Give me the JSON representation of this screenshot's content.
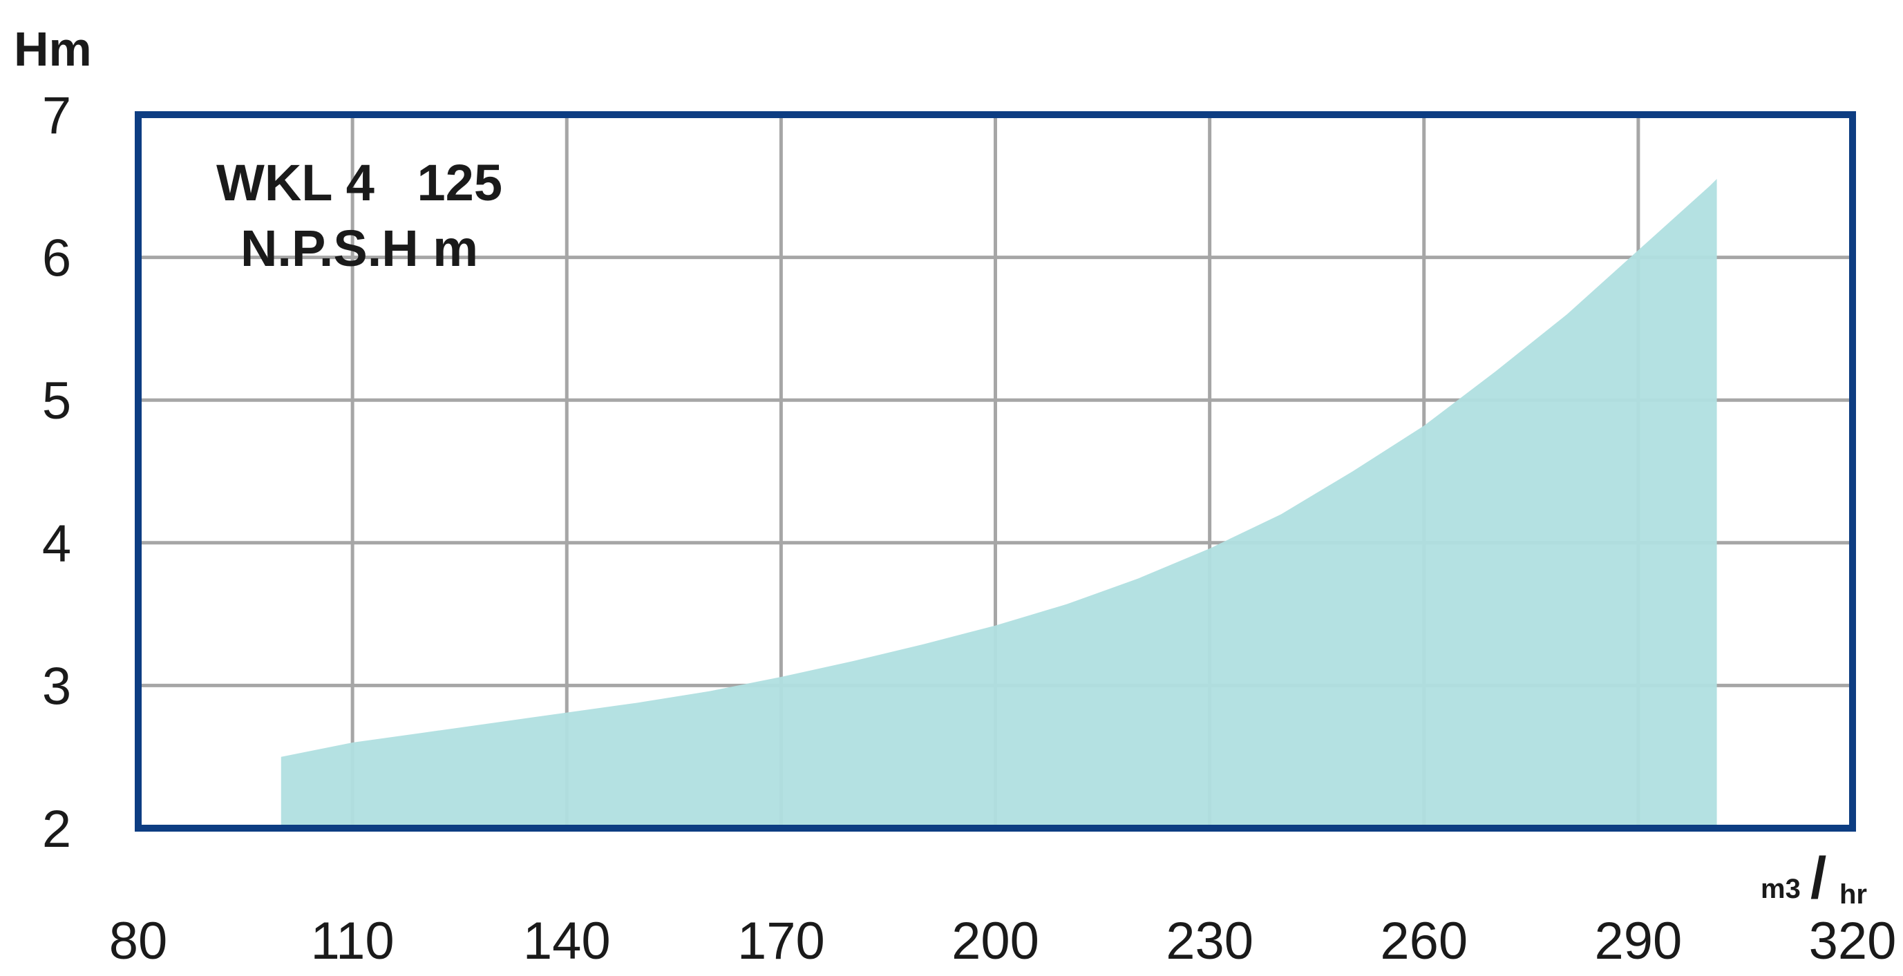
{
  "chart_data": {
    "type": "area",
    "title": "WKL 4   125",
    "subtitle": "N.P.S.H m",
    "ylabel": "Hm",
    "xlabel_num": "m3",
    "xlabel_den": "hr",
    "xlim": [
      80,
      320
    ],
    "ylim": [
      2,
      7
    ],
    "xticks": [
      "80",
      "110",
      "140",
      "170",
      "200",
      "230",
      "260",
      "290",
      "320"
    ],
    "yticks": [
      "7",
      "6",
      "5",
      "4",
      "3",
      "2"
    ],
    "grid": true,
    "colors": {
      "fill": "#b0dfe0",
      "frame": "#0d3d82",
      "grid": "#a6a6a6"
    },
    "series": [
      {
        "x": [
          100,
          110,
          120,
          130,
          140,
          150,
          160,
          170,
          180,
          190,
          200,
          210,
          220,
          230,
          240,
          250,
          260,
          270,
          280,
          290,
          300,
          301
        ],
        "values": [
          2.5,
          2.6,
          2.67,
          2.74,
          2.81,
          2.88,
          2.96,
          3.06,
          3.17,
          3.29,
          3.42,
          3.57,
          3.75,
          3.96,
          4.2,
          4.5,
          4.82,
          5.2,
          5.6,
          6.05,
          6.5,
          6.55
        ]
      }
    ]
  }
}
